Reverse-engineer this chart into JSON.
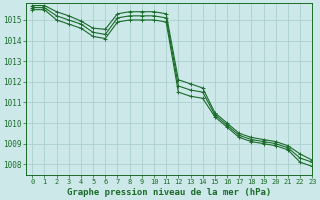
{
  "title": "Graphe pression niveau de la mer (hPa)",
  "bg_color": "#cce8e8",
  "grid_color": "#aed0d0",
  "line_color": "#1a6b2a",
  "xlim": [
    -0.5,
    23
  ],
  "ylim": [
    1007.5,
    1015.8
  ],
  "xticks": [
    0,
    1,
    2,
    3,
    4,
    5,
    6,
    7,
    8,
    9,
    10,
    11,
    12,
    13,
    14,
    15,
    16,
    17,
    18,
    19,
    20,
    21,
    22,
    23
  ],
  "yticks": [
    1008,
    1009,
    1010,
    1011,
    1012,
    1013,
    1014,
    1015
  ],
  "series": [
    [
      1015.6,
      1015.6,
      1015.2,
      1015.0,
      1014.8,
      1014.4,
      1014.3,
      1015.1,
      1015.2,
      1015.2,
      1015.2,
      1015.1,
      1011.8,
      1011.6,
      1011.5,
      1010.4,
      1009.9,
      1009.4,
      1009.2,
      1009.1,
      1009.0,
      1008.8,
      1008.3,
      1008.1
    ],
    [
      1015.7,
      1015.7,
      1015.4,
      1015.2,
      1014.95,
      1014.6,
      1014.55,
      1015.3,
      1015.4,
      1015.4,
      1015.4,
      1015.3,
      1012.1,
      1011.9,
      1011.7,
      1010.5,
      1010.0,
      1009.5,
      1009.3,
      1009.2,
      1009.1,
      1008.9,
      1008.5,
      1008.2
    ],
    [
      1015.5,
      1015.5,
      1015.0,
      1014.8,
      1014.6,
      1014.2,
      1014.1,
      1014.9,
      1015.0,
      1015.0,
      1015.0,
      1014.9,
      1011.5,
      1011.3,
      1011.2,
      1010.3,
      1009.8,
      1009.3,
      1009.1,
      1009.0,
      1008.9,
      1008.7,
      1008.1,
      1007.9
    ]
  ],
  "xlabel_fontsize": 6.5,
  "ytick_fontsize": 5.5,
  "xtick_fontsize": 5.0
}
